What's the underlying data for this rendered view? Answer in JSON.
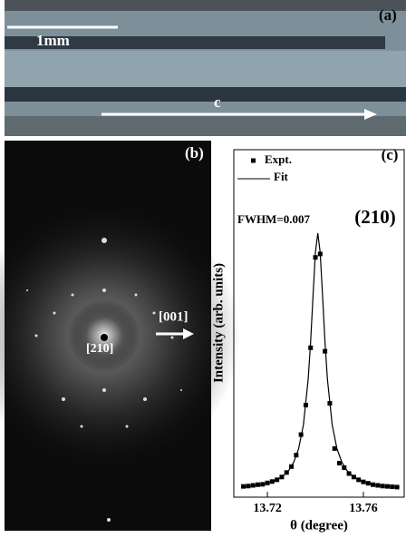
{
  "panels": {
    "a": {
      "label": "(a)",
      "scale": "1mm",
      "axis": "c"
    },
    "b": {
      "label": "(b)",
      "direction": "[001]",
      "zone": "[210]"
    }
  },
  "chart_data": {
    "type": "scatter",
    "label": "(c)",
    "annotation": "FWHM=0.007",
    "reflection": "(210)",
    "x_label": "θ (degree)",
    "y_label": "Intensity (arb. units)",
    "xlim": [
      13.706,
      13.777
    ],
    "ylim": [
      0,
      1
    ],
    "xticks": [
      13.72,
      13.76
    ],
    "series": [
      {
        "name": "Expt.",
        "color": "#000000",
        "style": "points",
        "x": [
          13.71,
          13.712,
          13.714,
          13.716,
          13.718,
          13.72,
          13.722,
          13.724,
          13.726,
          13.728,
          13.73,
          13.732,
          13.734,
          13.736,
          13.738,
          13.74,
          13.742,
          13.744,
          13.746,
          13.748,
          13.75,
          13.752,
          13.754,
          13.756,
          13.758,
          13.76,
          13.762,
          13.764,
          13.766,
          13.768,
          13.77,
          13.772,
          13.774
        ],
        "values": [
          0.031,
          0.032,
          0.034,
          0.036,
          0.037,
          0.041,
          0.045,
          0.05,
          0.058,
          0.071,
          0.088,
          0.121,
          0.18,
          0.265,
          0.43,
          0.69,
          0.7,
          0.42,
          0.27,
          0.14,
          0.098,
          0.085,
          0.068,
          0.058,
          0.05,
          0.044,
          0.04,
          0.036,
          0.034,
          0.032,
          0.031,
          0.03,
          0.029
        ]
      },
      {
        "name": "Fit",
        "color": "#000000",
        "style": "line",
        "x": [
          13.709,
          13.711,
          13.713,
          13.715,
          13.717,
          13.719,
          13.721,
          13.723,
          13.725,
          13.727,
          13.729,
          13.731,
          13.733,
          13.735,
          13.737,
          13.738,
          13.739,
          13.74,
          13.741,
          13.742,
          13.743,
          13.744,
          13.745,
          13.747,
          13.749,
          13.751,
          13.753,
          13.755,
          13.757,
          13.759,
          13.761,
          13.763,
          13.765,
          13.767,
          13.769,
          13.771,
          13.773,
          13.775
        ],
        "values": [
          0.029,
          0.03,
          0.031,
          0.033,
          0.035,
          0.038,
          0.042,
          0.047,
          0.054,
          0.064,
          0.078,
          0.101,
          0.139,
          0.208,
          0.34,
          0.446,
          0.578,
          0.704,
          0.76,
          0.704,
          0.578,
          0.446,
          0.34,
          0.208,
          0.139,
          0.101,
          0.078,
          0.064,
          0.054,
          0.047,
          0.042,
          0.038,
          0.035,
          0.033,
          0.031,
          0.03,
          0.029,
          0.028
        ]
      }
    ]
  }
}
